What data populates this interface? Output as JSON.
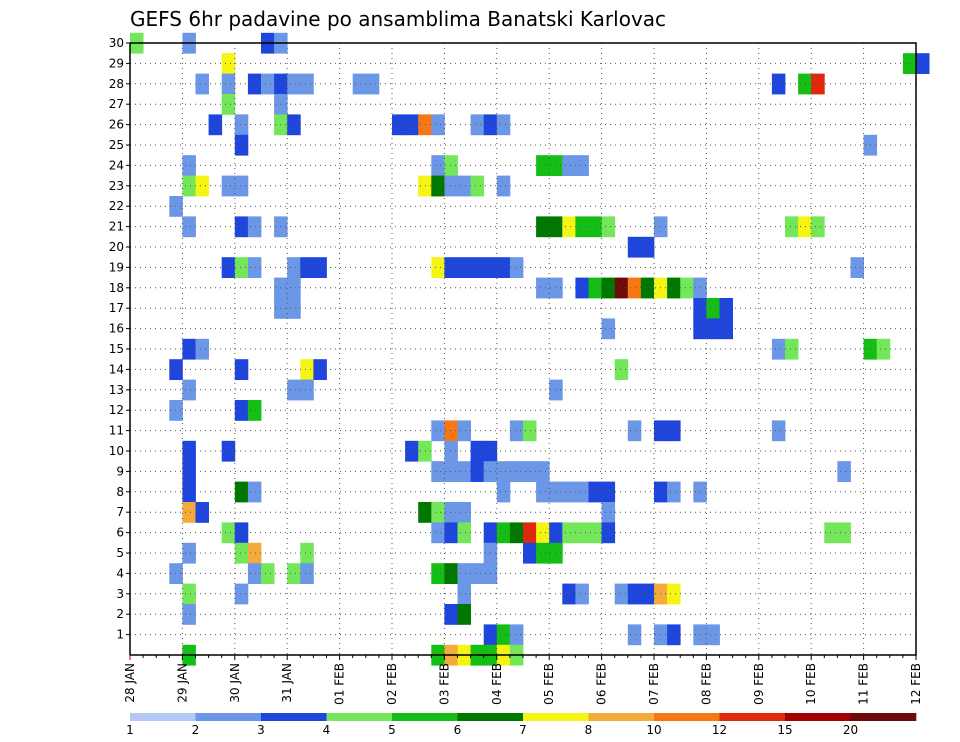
{
  "chart_data": {
    "type": "heatmap",
    "title": "GEFS 6hr padavine po ansamblima Banatski Karlovac",
    "xlabel": "",
    "ylabel": "",
    "x_ticks": [
      "28 JAN",
      "29 JAN",
      "30 JAN",
      "31 JAN",
      "01 FEB",
      "02 FEB",
      "03 FEB",
      "04 FEB",
      "05 FEB",
      "06 FEB",
      "07 FEB",
      "08 FEB",
      "09 FEB",
      "10 FEB",
      "11 FEB",
      "12 FEB"
    ],
    "y_ticks": [
      "1",
      "2",
      "3",
      "4",
      "5",
      "6",
      "7",
      "8",
      "9",
      "10",
      "11",
      "12",
      "13",
      "14",
      "15",
      "16",
      "17",
      "18",
      "19",
      "20",
      "21",
      "22",
      "23",
      "24",
      "25",
      "26",
      "27",
      "28",
      "29",
      "30"
    ],
    "xlim_steps": [
      0,
      60
    ],
    "ylim": [
      0,
      30
    ],
    "grid": true,
    "legend_position": "bottom",
    "color_scale": {
      "labels": [
        "1",
        "2",
        "3",
        "4",
        "5",
        "6",
        "7",
        "8",
        "10",
        "12",
        "15",
        "20"
      ],
      "colors": [
        "#b4c8f5",
        "#6c96e6",
        "#1e46dc",
        "#73e65a",
        "#14be14",
        "#007800",
        "#f5f514",
        "#f5aa3c",
        "#f57814",
        "#e1280a",
        "#a50000",
        "#6e0a0a"
      ]
    },
    "cells": [
      [
        0.5,
        30,
        3
      ],
      [
        4.5,
        30,
        1
      ],
      [
        10.5,
        30,
        2
      ],
      [
        11.5,
        30,
        1
      ],
      [
        7.5,
        29,
        6
      ],
      [
        59.5,
        29,
        4
      ],
      [
        60.5,
        29,
        2
      ],
      [
        5.5,
        28,
        1
      ],
      [
        7.5,
        28,
        1
      ],
      [
        9.5,
        28,
        2
      ],
      [
        10.5,
        28,
        1
      ],
      [
        11.5,
        28,
        2
      ],
      [
        12.5,
        28,
        1
      ],
      [
        13.5,
        28,
        1
      ],
      [
        17.5,
        28,
        1
      ],
      [
        18.5,
        28,
        1
      ],
      [
        49.5,
        28,
        2
      ],
      [
        51.5,
        28,
        4
      ],
      [
        52.5,
        28,
        9
      ],
      [
        7.5,
        27,
        3
      ],
      [
        11.5,
        27,
        1
      ],
      [
        6.5,
        26,
        2
      ],
      [
        8.5,
        26,
        1
      ],
      [
        11.5,
        26,
        3
      ],
      [
        12.5,
        26,
        2
      ],
      [
        20.5,
        26,
        2
      ],
      [
        21.5,
        26,
        2
      ],
      [
        22.5,
        26,
        8
      ],
      [
        23.5,
        26,
        1
      ],
      [
        26.5,
        26,
        1
      ],
      [
        27.5,
        26,
        2
      ],
      [
        28.5,
        26,
        1
      ],
      [
        8.5,
        25,
        2
      ],
      [
        56.5,
        25,
        1
      ],
      [
        4.5,
        24,
        1
      ],
      [
        23.5,
        24,
        1
      ],
      [
        24.5,
        24,
        3
      ],
      [
        31.5,
        24,
        4
      ],
      [
        32.5,
        24,
        4
      ],
      [
        33.5,
        24,
        1
      ],
      [
        34.5,
        24,
        1
      ],
      [
        4.5,
        23,
        3
      ],
      [
        5.5,
        23,
        6
      ],
      [
        7.5,
        23,
        1
      ],
      [
        8.5,
        23,
        1
      ],
      [
        22.5,
        23,
        6
      ],
      [
        23.5,
        23,
        5
      ],
      [
        24.5,
        23,
        1
      ],
      [
        25.5,
        23,
        1
      ],
      [
        26.5,
        23,
        3
      ],
      [
        28.5,
        23,
        1
      ],
      [
        3.5,
        22,
        1
      ],
      [
        4.5,
        21,
        1
      ],
      [
        8.5,
        21,
        2
      ],
      [
        9.5,
        21,
        1
      ],
      [
        11.5,
        21,
        1
      ],
      [
        31.5,
        21,
        5
      ],
      [
        32.5,
        21,
        5
      ],
      [
        33.5,
        21,
        6
      ],
      [
        34.5,
        21,
        4
      ],
      [
        35.5,
        21,
        4
      ],
      [
        36.5,
        21,
        3
      ],
      [
        40.5,
        21,
        1
      ],
      [
        50.5,
        21,
        3
      ],
      [
        51.5,
        21,
        6
      ],
      [
        52.5,
        21,
        3
      ],
      [
        38.5,
        20,
        2
      ],
      [
        39.5,
        20,
        2
      ],
      [
        7.5,
        19,
        2
      ],
      [
        8.5,
        19,
        3
      ],
      [
        9.5,
        19,
        1
      ],
      [
        12.5,
        19,
        1
      ],
      [
        13.5,
        19,
        2
      ],
      [
        14.5,
        19,
        2
      ],
      [
        23.5,
        19,
        6
      ],
      [
        24.5,
        19,
        2
      ],
      [
        25.5,
        19,
        2
      ],
      [
        26.5,
        19,
        2
      ],
      [
        27.5,
        19,
        2
      ],
      [
        28.5,
        19,
        2
      ],
      [
        29.5,
        19,
        1
      ],
      [
        55.5,
        19,
        1
      ],
      [
        11.5,
        18,
        1
      ],
      [
        12.5,
        18,
        1
      ],
      [
        31.5,
        18,
        1
      ],
      [
        32.5,
        18,
        1
      ],
      [
        34.5,
        18,
        2
      ],
      [
        35.5,
        18,
        4
      ],
      [
        36.5,
        18,
        5
      ],
      [
        37.5,
        18,
        11
      ],
      [
        38.5,
        18,
        8
      ],
      [
        39.5,
        18,
        5
      ],
      [
        40.5,
        18,
        6
      ],
      [
        41.5,
        18,
        5
      ],
      [
        42.5,
        18,
        3
      ],
      [
        43.5,
        18,
        1
      ],
      [
        11.5,
        17,
        1
      ],
      [
        12.5,
        17,
        1
      ],
      [
        43.5,
        17,
        2
      ],
      [
        44.5,
        17,
        4
      ],
      [
        45.5,
        17,
        2
      ],
      [
        36.5,
        16,
        1
      ],
      [
        43.5,
        16,
        2
      ],
      [
        44.5,
        16,
        2
      ],
      [
        45.5,
        16,
        2
      ],
      [
        4.5,
        15,
        2
      ],
      [
        5.5,
        15,
        1
      ],
      [
        49.5,
        15,
        1
      ],
      [
        50.5,
        15,
        3
      ],
      [
        56.5,
        15,
        4
      ],
      [
        57.5,
        15,
        3
      ],
      [
        3.5,
        14,
        2
      ],
      [
        8.5,
        14,
        2
      ],
      [
        13.5,
        14,
        6
      ],
      [
        14.5,
        14,
        2
      ],
      [
        37.5,
        14,
        3
      ],
      [
        4.5,
        13,
        1
      ],
      [
        12.5,
        13,
        1
      ],
      [
        13.5,
        13,
        1
      ],
      [
        32.5,
        13,
        1
      ],
      [
        3.5,
        12,
        1
      ],
      [
        8.5,
        12,
        2
      ],
      [
        9.5,
        12,
        4
      ],
      [
        23.5,
        11,
        1
      ],
      [
        24.5,
        11,
        8
      ],
      [
        25.5,
        11,
        1
      ],
      [
        29.5,
        11,
        1
      ],
      [
        30.5,
        11,
        3
      ],
      [
        38.5,
        11,
        1
      ],
      [
        40.5,
        11,
        2
      ],
      [
        41.5,
        11,
        2
      ],
      [
        49.5,
        11,
        1
      ],
      [
        4.5,
        10,
        2
      ],
      [
        7.5,
        10,
        2
      ],
      [
        21.5,
        10,
        2
      ],
      [
        22.5,
        10,
        3
      ],
      [
        24.5,
        10,
        1
      ],
      [
        26.5,
        10,
        2
      ],
      [
        27.5,
        10,
        2
      ],
      [
        4.5,
        9,
        2
      ],
      [
        23.5,
        9,
        1
      ],
      [
        24.5,
        9,
        1
      ],
      [
        25.5,
        9,
        1
      ],
      [
        26.5,
        9,
        2
      ],
      [
        27.5,
        9,
        1
      ],
      [
        28.5,
        9,
        1
      ],
      [
        29.5,
        9,
        1
      ],
      [
        30.5,
        9,
        1
      ],
      [
        31.5,
        9,
        1
      ],
      [
        54.5,
        9,
        1
      ],
      [
        4.5,
        8,
        2
      ],
      [
        8.5,
        8,
        5
      ],
      [
        9.5,
        8,
        1
      ],
      [
        28.5,
        8,
        1
      ],
      [
        31.5,
        8,
        1
      ],
      [
        32.5,
        8,
        1
      ],
      [
        33.5,
        8,
        1
      ],
      [
        34.5,
        8,
        1
      ],
      [
        35.5,
        8,
        2
      ],
      [
        36.5,
        8,
        2
      ],
      [
        40.5,
        8,
        2
      ],
      [
        41.5,
        8,
        1
      ],
      [
        43.5,
        8,
        1
      ],
      [
        4.5,
        7,
        7
      ],
      [
        5.5,
        7,
        2
      ],
      [
        22.5,
        7,
        5
      ],
      [
        23.5,
        7,
        3
      ],
      [
        24.5,
        7,
        1
      ],
      [
        25.5,
        7,
        1
      ],
      [
        36.5,
        7,
        1
      ],
      [
        7.5,
        6,
        3
      ],
      [
        8.5,
        6,
        2
      ],
      [
        23.5,
        6,
        1
      ],
      [
        24.5,
        6,
        2
      ],
      [
        25.5,
        6,
        3
      ],
      [
        27.5,
        6,
        2
      ],
      [
        28.5,
        6,
        4
      ],
      [
        29.5,
        6,
        5
      ],
      [
        30.5,
        6,
        9
      ],
      [
        31.5,
        6,
        6
      ],
      [
        32.5,
        6,
        2
      ],
      [
        33.5,
        6,
        3
      ],
      [
        34.5,
        6,
        3
      ],
      [
        35.5,
        6,
        3
      ],
      [
        36.5,
        6,
        2
      ],
      [
        53.5,
        6,
        3
      ],
      [
        54.5,
        6,
        3
      ],
      [
        4.5,
        5,
        1
      ],
      [
        8.5,
        5,
        3
      ],
      [
        9.5,
        5,
        7
      ],
      [
        13.5,
        5,
        3
      ],
      [
        27.5,
        5,
        1
      ],
      [
        30.5,
        5,
        2
      ],
      [
        31.5,
        5,
        4
      ],
      [
        32.5,
        5,
        4
      ],
      [
        3.5,
        4,
        1
      ],
      [
        9.5,
        4,
        1
      ],
      [
        10.5,
        4,
        3
      ],
      [
        12.5,
        4,
        3
      ],
      [
        13.5,
        4,
        1
      ],
      [
        23.5,
        4,
        4
      ],
      [
        24.5,
        4,
        5
      ],
      [
        25.5,
        4,
        1
      ],
      [
        26.5,
        4,
        1
      ],
      [
        27.5,
        4,
        1
      ],
      [
        4.5,
        3,
        3
      ],
      [
        8.5,
        3,
        1
      ],
      [
        25.5,
        3,
        1
      ],
      [
        33.5,
        3,
        2
      ],
      [
        34.5,
        3,
        1
      ],
      [
        37.5,
        3,
        1
      ],
      [
        38.5,
        3,
        2
      ],
      [
        39.5,
        3,
        2
      ],
      [
        40.5,
        3,
        7
      ],
      [
        41.5,
        3,
        6
      ],
      [
        4.5,
        2,
        1
      ],
      [
        24.5,
        2,
        2
      ],
      [
        25.5,
        2,
        5
      ],
      [
        27.5,
        1,
        2
      ],
      [
        28.5,
        1,
        4
      ],
      [
        29.5,
        1,
        1
      ],
      [
        38.5,
        1,
        1
      ],
      [
        40.5,
        1,
        1
      ],
      [
        41.5,
        1,
        2
      ],
      [
        43.5,
        1,
        1
      ],
      [
        44.5,
        1,
        1
      ],
      [
        4.5,
        0,
        4
      ],
      [
        23.5,
        0,
        4
      ],
      [
        24.5,
        0,
        7
      ],
      [
        25.5,
        0,
        6
      ],
      [
        26.5,
        0,
        4
      ],
      [
        27.5,
        0,
        4
      ],
      [
        28.5,
        0,
        6
      ],
      [
        29.5,
        0,
        3
      ]
    ]
  }
}
